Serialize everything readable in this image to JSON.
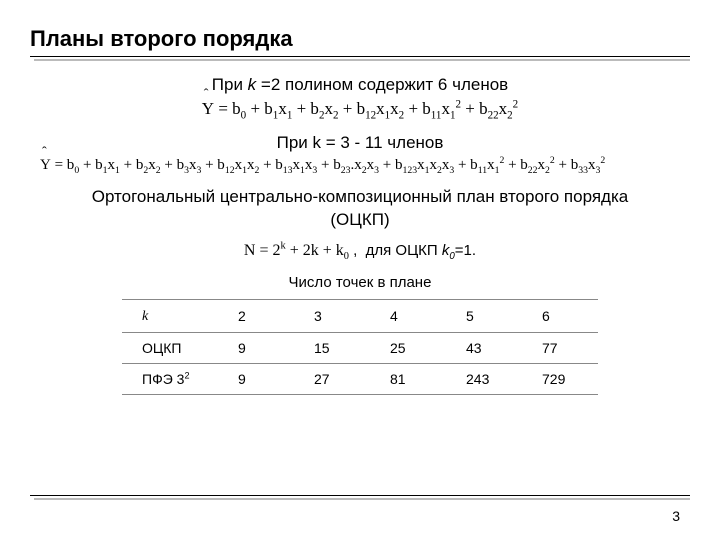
{
  "title": "Планы второго порядка",
  "line_k2": {
    "pre": "При ",
    "kvar": "k",
    "post": " =2 полином содержит 6 членов"
  },
  "formula_k2_html": "<span class='hat'>Y</span> = b<sub>0</sub> + b<sub>1</sub>x<sub>1</sub> + b<sub>2</sub>x<sub>2</sub> + b<sub>12</sub>x<sub>1</sub>x<sub>2</sub> + b<sub>11</sub>x<sub>1</sub><sup>2</sup> + b<sub>22</sub>x<sub>2</sub><sup>2</sup>",
  "line_k3": "При k = 3 - 11 членов",
  "formula_k3_html": "<span class='hat'>Y</span> = b<sub>0</sub> + b<sub>1</sub>x<sub>1</sub> + b<sub>2</sub>x<sub>2</sub> + b<sub>3</sub>x<sub>3</sub> + b<sub>12</sub>x<sub>1</sub>x<sub>2</sub> + b<sub>13</sub>x<sub>1</sub>x<sub>3</sub> + b<sub>23</sub>.x<sub>2</sub>x<sub>3</sub> + b<sub>123</sub>x<sub>1</sub>x<sub>2</sub>x<sub>3</sub> + b<sub>11</sub>x<sub>1</sub><sup>2</sup> + b<sub>22</sub>x<sub>2</sub><sup>2</sup> + b<sub>33</sub>x<sub>3</sub><sup>2</sup>",
  "sub_heading": "Ортогональный центрально-композиционный план второго порядка (ОЦКП)",
  "n_formula_html": "N = 2<sup>k</sup> + 2k + k<sub>0</sub>",
  "n_rest_html": " ,&nbsp; для ОЦКП <i>k<sub>0</sub></i>=1.",
  "table_caption": "Число точек в плане",
  "table": {
    "rows": [
      {
        "label_html": "<span class='italic'>k</span>",
        "cells": [
          "2",
          "3",
          "4",
          "5",
          "6"
        ]
      },
      {
        "label_html": "ОЦКП",
        "cells": [
          "9",
          "15",
          "25",
          "43",
          "77"
        ]
      },
      {
        "label_html": "ПФЭ 3<sup>2</sup>",
        "cells": [
          "9",
          "27",
          "81",
          "243",
          "729"
        ]
      }
    ]
  },
  "page_number": "3",
  "colors": {
    "text": "#000000",
    "rule_shadow": "#bbbbbb",
    "table_border": "#888888",
    "background": "#ffffff"
  }
}
